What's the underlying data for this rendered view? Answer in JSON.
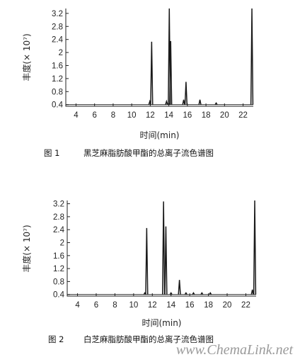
{
  "chart_data": [
    {
      "type": "line",
      "title": "",
      "caption_num": "图 1",
      "caption_text": "黑芝麻脂肪酸甲酯的总离子流色谱图",
      "xlabel": "时间(min)",
      "ylabel": "丰度(× 10⁷)",
      "xlim": [
        2.9,
        23.1
      ],
      "ylim": [
        0.35,
        3.35
      ],
      "x_ticks": [
        4,
        6,
        8,
        10,
        12,
        14,
        16,
        18,
        20,
        22
      ],
      "y_ticks": [
        0.4,
        0.8,
        1.2,
        1.6,
        2.0,
        2.4,
        2.8,
        3.2
      ],
      "y_tick_labels": [
        "0.4",
        "0.8",
        "1.2",
        "1.6",
        "2",
        "2.4",
        "2.8",
        "3.2"
      ],
      "baseline": 0.4,
      "peaks": [
        {
          "x": 11.95,
          "y": 0.5
        },
        {
          "x": 12.15,
          "y": 2.33
        },
        {
          "x": 13.75,
          "y": 0.5
        },
        {
          "x": 14.05,
          "y": 3.35
        },
        {
          "x": 14.2,
          "y": 2.35
        },
        {
          "x": 15.6,
          "y": 0.55
        },
        {
          "x": 15.85,
          "y": 1.1
        },
        {
          "x": 17.35,
          "y": 0.55
        },
        {
          "x": 19.1,
          "y": 0.45
        },
        {
          "x": 22.95,
          "y": 3.35
        }
      ]
    },
    {
      "type": "line",
      "title": "",
      "caption_num": "图 2",
      "caption_text": "白芝麻脂肪酸甲酯的总离子流色谱图",
      "xlabel": "时间(min)",
      "ylabel": "丰度(× 10⁷)",
      "xlim": [
        2.9,
        23.1
      ],
      "ylim": [
        0.35,
        3.3
      ],
      "x_ticks": [
        4,
        6,
        8,
        10,
        12,
        14,
        16,
        18,
        20,
        22
      ],
      "y_ticks": [
        0.4,
        0.8,
        1.2,
        1.6,
        2.0,
        2.4,
        2.8,
        3.2
      ],
      "y_tick_labels": [
        "0.4",
        "0.8",
        "1.2",
        "1.6",
        "2",
        "2.4",
        "2.8",
        "3.2"
      ],
      "baseline": 0.4,
      "peaks": [
        {
          "x": 11.2,
          "y": 0.45
        },
        {
          "x": 11.4,
          "y": 2.45
        },
        {
          "x": 13.2,
          "y": 3.27
        },
        {
          "x": 13.45,
          "y": 2.5
        },
        {
          "x": 14.0,
          "y": 0.45
        },
        {
          "x": 14.9,
          "y": 0.85
        },
        {
          "x": 15.6,
          "y": 0.45
        },
        {
          "x": 16.4,
          "y": 0.45
        },
        {
          "x": 17.3,
          "y": 0.45
        },
        {
          "x": 18.2,
          "y": 0.45
        },
        {
          "x": 22.7,
          "y": 0.55
        },
        {
          "x": 22.95,
          "y": 3.3
        }
      ]
    }
  ],
  "watermark": "www.ChemaLink.net",
  "colors": {
    "line": "#1a1a1a",
    "axis": "#222222",
    "watermark": "#9a9a9a"
  }
}
